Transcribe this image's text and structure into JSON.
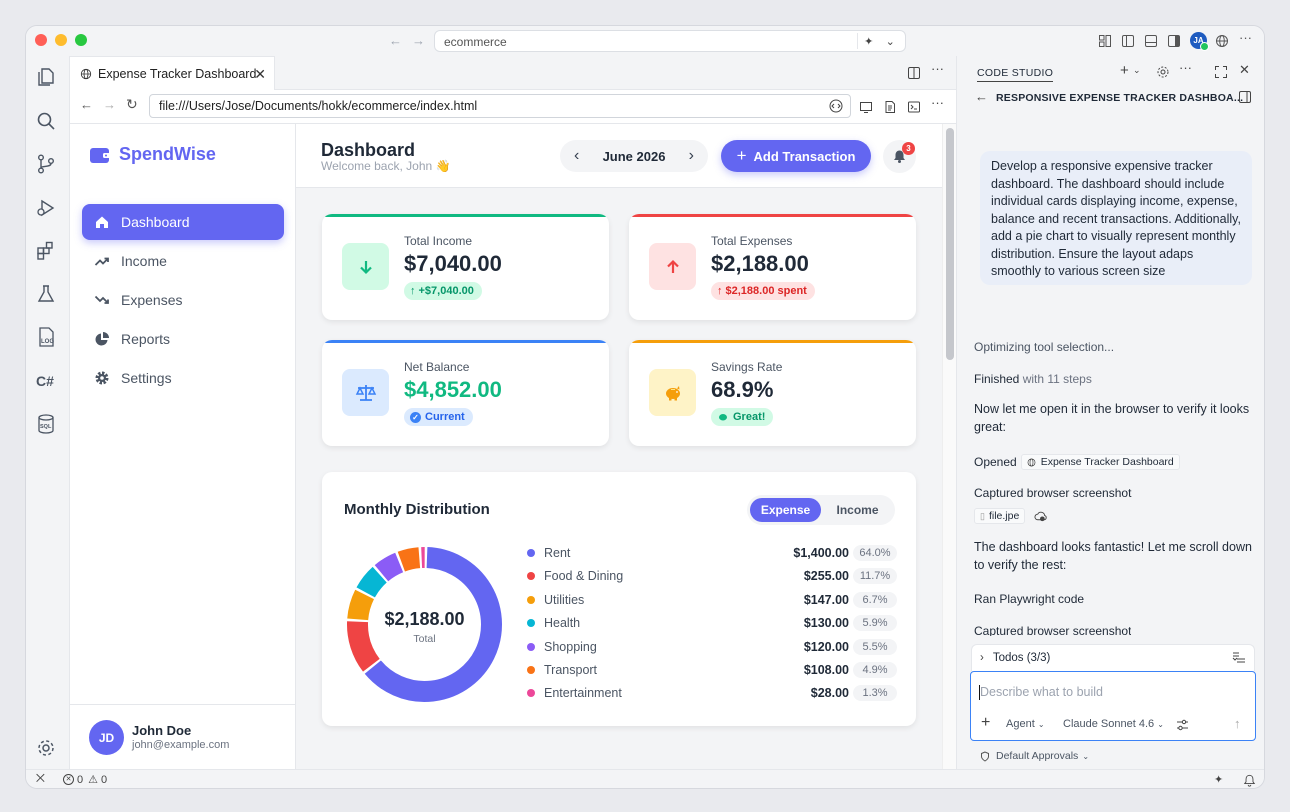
{
  "window": {
    "command_center": "ecommerce"
  },
  "editor": {
    "tab_title": "Expense Tracker Dashboard",
    "url": "file:///Users/Jose/Documents/hokk/ecommerce/index.html"
  },
  "app": {
    "brand": "SpendWise",
    "nav": [
      {
        "label": "Dashboard",
        "icon": "home-icon",
        "active": true
      },
      {
        "label": "Income",
        "icon": "trending-up-icon",
        "active": false
      },
      {
        "label": "Expenses",
        "icon": "trending-down-icon",
        "active": false
      },
      {
        "label": "Reports",
        "icon": "pie-chart-icon",
        "active": false
      },
      {
        "label": "Settings",
        "icon": "gear-icon",
        "active": false
      }
    ],
    "user": {
      "initials": "JD",
      "name": "John Doe",
      "email": "john@example.com"
    },
    "header": {
      "title": "Dashboard",
      "subtitle": "Welcome back, John 👋",
      "month": "June 2026",
      "add_button": "Add Transaction",
      "notification_count": "3"
    },
    "cards": [
      {
        "label": "Total Income",
        "value": "$7,040.00",
        "pill": "+$7,040.00",
        "color": "#10b981",
        "icon": "arrow-down-icon"
      },
      {
        "label": "Total Expenses",
        "value": "$2,188.00",
        "pill": "$2,188.00 spent",
        "color": "#ef4444",
        "icon": "arrow-up-icon"
      },
      {
        "label": "Net Balance",
        "value": "$4,852.00",
        "pill": "Current",
        "color": "#3b82f6",
        "icon": "scale-icon"
      },
      {
        "label": "Savings Rate",
        "value": "68.9%",
        "pill": "Great!",
        "color": "#f59e0b",
        "icon": "piggy-bank-icon"
      }
    ],
    "distribution": {
      "title": "Monthly Distribution",
      "toggle": [
        "Expense",
        "Income"
      ],
      "center_value": "$2,188.00",
      "center_label": "Total"
    }
  },
  "chart_data": {
    "type": "pie",
    "categories": [
      "Rent",
      "Food & Dining",
      "Utilities",
      "Health",
      "Shopping",
      "Transport",
      "Entertainment"
    ],
    "values": [
      1400.0,
      255.0,
      147.0,
      130.0,
      120.0,
      108.0,
      28.0
    ],
    "value_labels": [
      "$1,400.00",
      "$255.00",
      "$147.00",
      "$130.00",
      "$120.00",
      "$108.00",
      "$28.00"
    ],
    "percent_labels": [
      "64.0%",
      "11.7%",
      "6.7%",
      "5.9%",
      "5.5%",
      "4.9%",
      "1.3%"
    ],
    "colors": [
      "#6366f1",
      "#ef4444",
      "#f59e0b",
      "#06b6d4",
      "#8b5cf6",
      "#f97316",
      "#ec4899"
    ],
    "title": "Monthly Distribution",
    "legend": "right"
  },
  "panel": {
    "title": "CODE STUDIO",
    "session_title": "RESPONSIVE EXPENSE TRACKER DASHBOA...",
    "prompt": "Develop a responsive expensive tracker dashboard. The dashboard should include individual cards displaying income, expense, balance and recent transactions. Additionally, add a pie chart to visually represent monthly distribution. Ensure the layout adaps smoothly to various screen size",
    "optimizing": "Optimizing tool selection...",
    "finished": "Finished",
    "finished_steps": "with 11 steps",
    "msg1": "Now let me open it in the browser to verify it looks great:",
    "opened_label": "Opened",
    "opened_chip": "Expense Tracker Dashboard",
    "captured1": "Captured browser screenshot",
    "file_chip": "file.jpe",
    "msg2": "The dashboard looks fantastic! Let me scroll down to verify the rest:",
    "ran": "Ran Playwright code",
    "captured2": "Captured browser screenshot",
    "todos": "Todos (3/3)",
    "input_placeholder": "Describe what to build",
    "agent": "Agent",
    "model": "Claude Sonnet 4.6",
    "approvals": "Default Approvals"
  },
  "statusbar": {
    "errors": "0",
    "warnings": "0"
  }
}
